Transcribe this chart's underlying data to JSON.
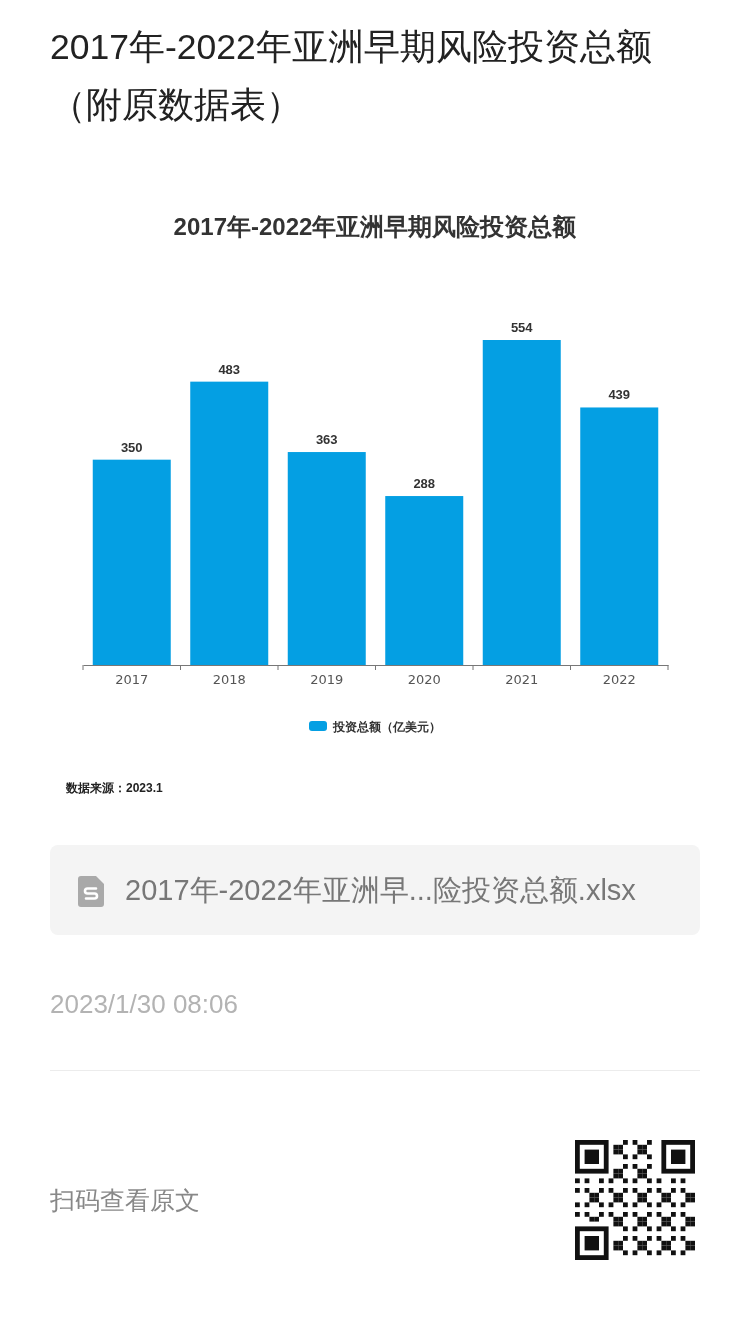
{
  "chart_data": {
    "type": "bar",
    "title": "2017年-2022年亚洲早期风险投资总额",
    "categories": [
      "2017",
      "2018",
      "2019",
      "2020",
      "2021",
      "2022"
    ],
    "series": [
      {
        "name": "投资总额（亿美元）",
        "color": "#049fe3",
        "values": [
          350,
          483,
          363,
          288,
          554,
          439
        ]
      }
    ],
    "tick_labels": "x",
    "data_labels": true,
    "legend": "bottom",
    "annotations": [
      "2017年-2022年亚洲早期风险投资总额（附原数据表）",
      "数据来源：2023.1",
      "2017年-2022年亚洲早...险投资总额.xlsx",
      "2023/1/30 08:06",
      "扫码查看原文"
    ]
  }
}
